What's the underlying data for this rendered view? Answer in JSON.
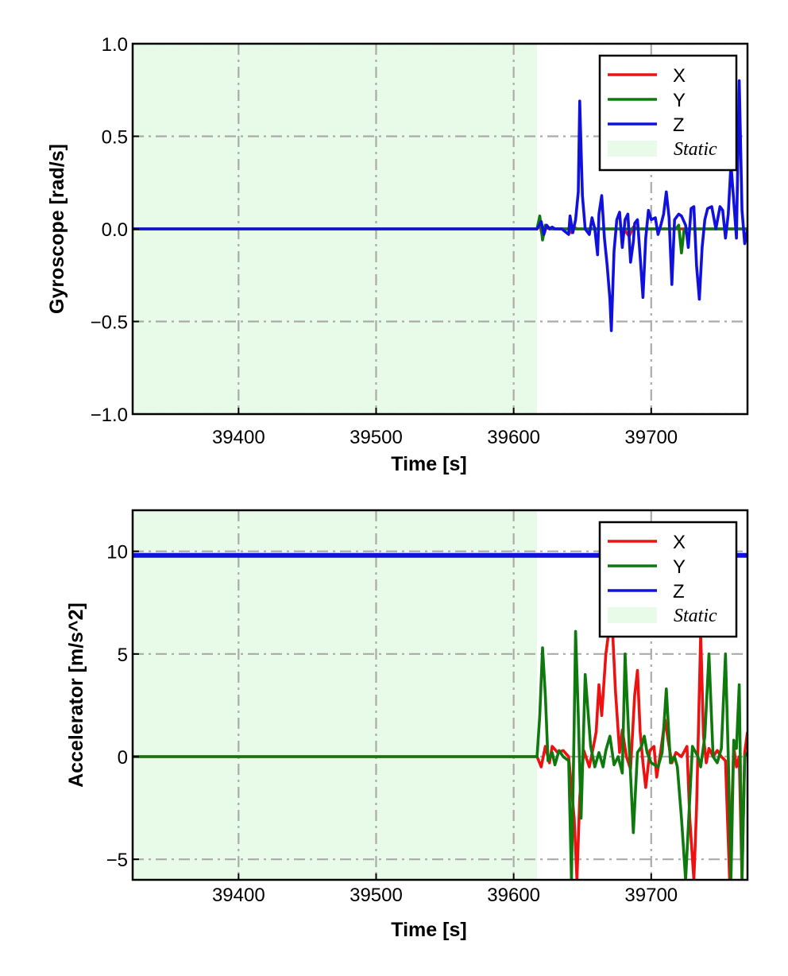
{
  "colors": {
    "x": "#ee1111",
    "y": "#0e7a0e",
    "z": "#1111dd",
    "static_fill": "#e8fbe8",
    "grid": "#aaaaaa"
  },
  "chart_data": [
    {
      "type": "line",
      "xlabel": "Time [s]",
      "ylabel": "Gyroscope [rad/s]",
      "xlim": [
        39323,
        39770
      ],
      "ylim": [
        -1.0,
        1.0
      ],
      "xticks": [
        39400,
        39500,
        39600,
        39700
      ],
      "xtick_labels": [
        "39400",
        "39500",
        "39600",
        "39700"
      ],
      "yticks": [
        -1.0,
        -0.5,
        0.0,
        0.5,
        1.0
      ],
      "ytick_labels": [
        "−1.0",
        "−0.5",
        "0.0",
        "0.5",
        "1.0"
      ],
      "grid": true,
      "legend_position": "top-right",
      "static_region": [
        39323,
        39617
      ],
      "legend": {
        "x": "X",
        "y": "Y",
        "z": "Z",
        "static": "Static"
      },
      "series": [
        {
          "name": "X",
          "color_key": "x",
          "x": [
            39323,
            39617,
            39619,
            39621,
            39623,
            39626,
            39640,
            39642,
            39644,
            39646,
            39680,
            39684,
            39687,
            39690,
            39700,
            39770
          ],
          "y": [
            0,
            0,
            0.02,
            -0.04,
            0.01,
            0,
            0,
            -0.02,
            0.01,
            0,
            0,
            -0.04,
            0.01,
            0,
            0,
            0
          ]
        },
        {
          "name": "Y",
          "color_key": "y",
          "x": [
            39323,
            39617,
            39619,
            39621,
            39623,
            39627,
            39718,
            39720,
            39722,
            39724,
            39770
          ],
          "y": [
            0,
            0,
            0.07,
            -0.06,
            0.02,
            0,
            0,
            0.02,
            -0.13,
            0,
            0
          ]
        },
        {
          "name": "Z",
          "color_key": "z",
          "x": [
            39323,
            39617,
            39620,
            39622,
            39624,
            39626,
            39628,
            39630,
            39635,
            39640,
            39641,
            39643,
            39645,
            39647,
            39648,
            39650,
            39652,
            39655,
            39657,
            39659,
            39661,
            39662,
            39664,
            39666,
            39668,
            39670,
            39671,
            39673,
            39675,
            39677,
            39679,
            39681,
            39683,
            39685,
            39687,
            39688,
            39690,
            39692,
            39694,
            39696,
            39698,
            39700,
            39703,
            39705,
            39707,
            39709,
            39711,
            39713,
            39715,
            39717,
            39720,
            39722,
            39725,
            39727,
            39729,
            39731,
            39733,
            39735,
            39737,
            39739,
            39741,
            39744,
            39747,
            39750,
            39752,
            39754,
            39756,
            39758,
            39760,
            39762,
            39764,
            39766,
            39768,
            39770
          ],
          "y": [
            0,
            0,
            0.04,
            -0.03,
            0.02,
            0,
            0.01,
            0,
            0,
            -0.03,
            0.07,
            -0.02,
            0.05,
            0.2,
            0.69,
            0.18,
            0,
            -0.03,
            0.06,
            0,
            -0.14,
            0.08,
            0.18,
            -0.05,
            -0.2,
            -0.38,
            -0.55,
            -0.12,
            0.05,
            0.09,
            -0.1,
            0.05,
            0.08,
            -0.18,
            -0.07,
            0.03,
            0.05,
            -0.15,
            -0.37,
            -0.05,
            0.1,
            0.05,
            0.06,
            -0.03,
            0.02,
            0.08,
            0.2,
            0.06,
            -0.3,
            0.05,
            0.08,
            0.07,
            0.02,
            -0.1,
            0.11,
            0.12,
            -0.2,
            -0.38,
            -0.1,
            0.05,
            0.11,
            0.12,
            0.0,
            0.12,
            0.1,
            -0.05,
            0.08,
            0.35,
            0.15,
            -0.05,
            0.8,
            0.1,
            -0.08,
            0.0
          ]
        }
      ]
    },
    {
      "type": "line",
      "xlabel": "Time [s]",
      "ylabel": "Accelerator [m/s^2]",
      "xlim": [
        39323,
        39770
      ],
      "ylim": [
        -6.0,
        12.0
      ],
      "xticks": [
        39400,
        39500,
        39600,
        39700
      ],
      "xtick_labels": [
        "39400",
        "39500",
        "39600",
        "39700"
      ],
      "yticks": [
        -5,
        0,
        5,
        10
      ],
      "ytick_labels": [
        "−5",
        "0",
        "5",
        "10"
      ],
      "grid": true,
      "legend_position": "top-right",
      "static_region": [
        39323,
        39617
      ],
      "legend": {
        "x": "X",
        "y": "Y",
        "z": "Z",
        "static": "Static"
      },
      "series": [
        {
          "name": "X",
          "color_key": "x",
          "x": [
            39323,
            39617,
            39620,
            39623,
            39626,
            39628,
            39632,
            39636,
            39640,
            39644,
            39646,
            39648,
            39651,
            39655,
            39658,
            39660,
            39662,
            39664,
            39667,
            39670,
            39672,
            39674,
            39677,
            39679,
            39682,
            39685,
            39688,
            39690,
            39692,
            39694,
            39696,
            39699,
            39702,
            39704,
            39707,
            39710,
            39713,
            39715,
            39718,
            39722,
            39726,
            39728,
            39731,
            39733,
            39736,
            39738,
            39740,
            39742,
            39745,
            39748,
            39751,
            39754,
            39757,
            39760,
            39762,
            39764,
            39766,
            39768,
            39770
          ],
          "y": [
            0,
            0,
            -0.5,
            0.5,
            -0.3,
            0.5,
            0.2,
            0.3,
            0,
            -3.0,
            -6.0,
            -2.0,
            0.3,
            -0.5,
            0.5,
            1.2,
            3.5,
            2.0,
            5.0,
            6.5,
            6.0,
            3.2,
            0.2,
            1.3,
            0.0,
            -0.6,
            3.0,
            4.2,
            1.2,
            -0.3,
            -1.5,
            0.3,
            0.5,
            -1.0,
            0.3,
            1.8,
            0.5,
            -0.3,
            0.2,
            0.0,
            0.5,
            -3.0,
            -6.0,
            -2.5,
            6.0,
            1.0,
            -0.3,
            0.4,
            0.0,
            0.3,
            0.0,
            -0.2,
            -6.0,
            0.5,
            -0.5,
            0.0,
            -6.0,
            0.2,
            1.2
          ]
        },
        {
          "name": "Y",
          "color_key": "y",
          "x": [
            39323,
            39617,
            39619,
            39621,
            39623,
            39625,
            39628,
            39630,
            39633,
            39636,
            39640,
            39642,
            39644,
            39645,
            39647,
            39649,
            39652,
            39656,
            39659,
            39662,
            39665,
            39667,
            39670,
            39673,
            39676,
            39679,
            39681,
            39684,
            39687,
            39690,
            39693,
            39695,
            39697,
            39700,
            39705,
            39708,
            39711,
            39714,
            39717,
            39719,
            39722,
            39725,
            39730,
            39734,
            39736,
            39739,
            39742,
            39745,
            39748,
            39751,
            39754,
            39756,
            39758,
            39760,
            39762,
            39764,
            39766,
            39768,
            39770
          ],
          "y": [
            0,
            0,
            2.0,
            5.3,
            3.0,
            -0.2,
            0.2,
            -0.4,
            0.3,
            0.0,
            -0.2,
            -6.0,
            1.5,
            6.1,
            2.0,
            -3.0,
            4.0,
            0.5,
            -0.5,
            0.2,
            -0.5,
            0.3,
            1.0,
            -0.4,
            0.0,
            -0.8,
            5.0,
            0.5,
            -3.7,
            0.2,
            0.5,
            1.0,
            0.2,
            -0.3,
            -0.5,
            0.2,
            3.3,
            -0.3,
            0.0,
            -0.5,
            -3.0,
            -6.0,
            0.5,
            0.0,
            -0.5,
            1.0,
            5.0,
            0.0,
            -0.3,
            0.4,
            5.0,
            0.0,
            -6.0,
            0.8,
            0.4,
            3.5,
            -6.0,
            0.0,
            0.2
          ]
        },
        {
          "name": "Z",
          "color_key": "z",
          "x": [
            39323,
            39770
          ],
          "y": [
            9.8,
            9.8
          ]
        }
      ]
    }
  ]
}
